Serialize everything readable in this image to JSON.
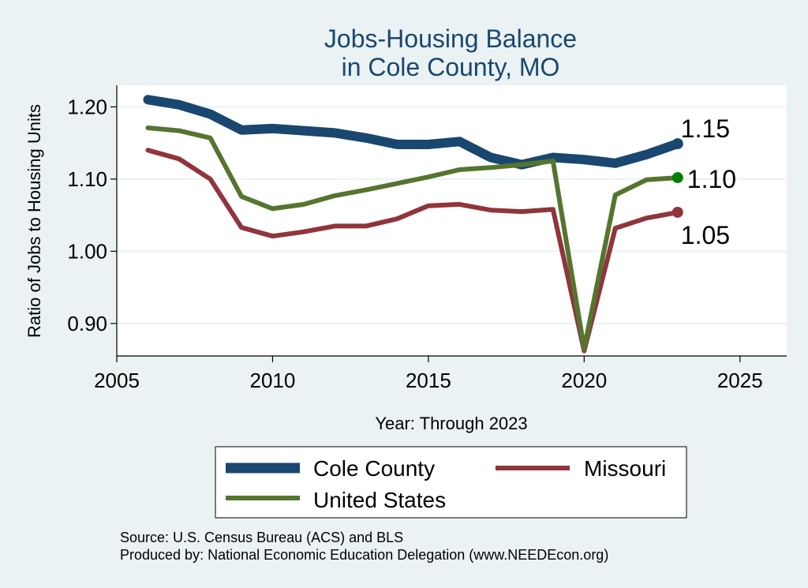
{
  "chart_data": {
    "type": "line",
    "title": [
      "Jobs-Housing Balance",
      "in Cole County, MO"
    ],
    "xlabel": "Year: Through 2023",
    "ylabel": "Ratio of Jobs to Housing Units",
    "xlim": [
      2005,
      2026.5
    ],
    "ylim": [
      0.855,
      1.23
    ],
    "xticks": [
      2005,
      2010,
      2015,
      2020,
      2025
    ],
    "yticks": [
      0.9,
      1.0,
      1.1,
      1.2
    ],
    "ytick_labels": [
      "0.90",
      "1.00",
      "1.10",
      "1.20"
    ],
    "grid": true,
    "legend_position": "bottom",
    "x": [
      2006,
      2007,
      2008,
      2009,
      2010,
      2011,
      2012,
      2013,
      2014,
      2015,
      2016,
      2017,
      2018,
      2019,
      2020,
      2021,
      2022,
      2023
    ],
    "series": [
      {
        "name": "Cole County",
        "color": "#1a476f",
        "values": [
          1.21,
          1.203,
          1.19,
          1.168,
          1.17,
          1.167,
          1.164,
          1.157,
          1.148,
          1.148,
          1.152,
          1.13,
          1.12,
          1.13,
          1.127,
          1.122,
          1.134,
          1.149
        ],
        "end_label": "1.15"
      },
      {
        "name": "Missouri",
        "color": "#90353b",
        "values": [
          1.14,
          1.128,
          1.1,
          1.033,
          1.021,
          1.027,
          1.035,
          1.035,
          1.045,
          1.063,
          1.065,
          1.057,
          1.055,
          1.058,
          0.862,
          1.032,
          1.046,
          1.054
        ],
        "end_label": "1.05"
      },
      {
        "name": "United States",
        "color": "#55752f",
        "values": [
          1.171,
          1.167,
          1.157,
          1.076,
          1.059,
          1.065,
          1.077,
          1.085,
          1.094,
          1.103,
          1.113,
          1.116,
          1.12,
          1.125,
          0.865,
          1.078,
          1.099,
          1.102
        ],
        "end_label": "1.10",
        "end_marker_color": "#008000"
      }
    ]
  },
  "legend": {
    "items": [
      {
        "label": "Cole County",
        "color": "#1a476f"
      },
      {
        "label": "Missouri",
        "color": "#90353b"
      },
      {
        "label": "United States",
        "color": "#55752f"
      }
    ]
  },
  "source": {
    "line1": "Source: U.S. Census Bureau (ACS) and BLS",
    "line2": "Produced by: National Economic Education Delegation (www.NEEDEcon.org)"
  }
}
